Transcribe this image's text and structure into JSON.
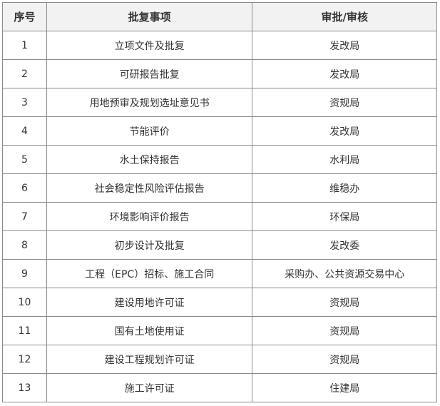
{
  "table": {
    "headers": [
      "序号",
      "批复事项",
      "审批/审核"
    ],
    "rows": [
      [
        "1",
        "立项文件及批复",
        "发改局"
      ],
      [
        "2",
        "可研报告批复",
        "发改局"
      ],
      [
        "3",
        "用地预审及规划选址意见书",
        "资规局"
      ],
      [
        "4",
        "节能评价",
        "发改局"
      ],
      [
        "5",
        "水土保持报告",
        "水利局"
      ],
      [
        "6",
        "社会稳定性风险评估报告",
        "维稳办"
      ],
      [
        "7",
        "环境影响评价报告",
        "环保局"
      ],
      [
        "8",
        "初步设计及批复",
        "发改委"
      ],
      [
        "9",
        "工程（EPC）招标、施工合同",
        "采购办、公共资源交易中心"
      ],
      [
        "10",
        "建设用地许可证",
        "资规局"
      ],
      [
        "11",
        "国有土地使用证",
        "资规局"
      ],
      [
        "12",
        "建设工程规划许可证",
        "资规局"
      ],
      [
        "13",
        "施工许可证",
        "住建局"
      ]
    ]
  }
}
